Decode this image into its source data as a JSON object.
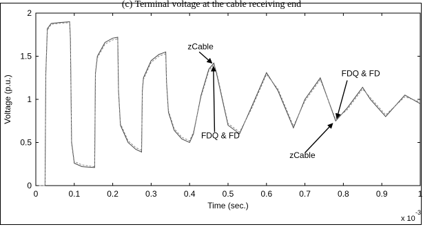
{
  "caption_fragment": "(c) Terminal voltage at the cable receiving end",
  "chart_data": {
    "type": "line",
    "title": "",
    "xlabel": "Time (sec.)",
    "ylabel": "Voltage (p.u.)",
    "x_multiplier": "x 10",
    "x_multiplier_exp": "-3",
    "xlim": [
      0,
      1
    ],
    "ylim": [
      0,
      2
    ],
    "xticks": [
      "0",
      "0.1",
      "0.2",
      "0.3",
      "0.4",
      "0.5",
      "0.6",
      "0.7",
      "0.8",
      "0.9",
      "1"
    ],
    "yticks": [
      "0",
      "0.5",
      "1",
      "1.5",
      "2"
    ],
    "grid": false,
    "legend": "none",
    "series": [
      {
        "style": "solid",
        "x": [
          0,
          0.024,
          0.026,
          0.03,
          0.04,
          0.06,
          0.088,
          0.09,
          0.093,
          0.1,
          0.12,
          0.15,
          0.153,
          0.155,
          0.16,
          0.18,
          0.2,
          0.213,
          0.215,
          0.22,
          0.24,
          0.26,
          0.275,
          0.277,
          0.28,
          0.3,
          0.32,
          0.338,
          0.34,
          0.345,
          0.36,
          0.38,
          0.4,
          0.41,
          0.43,
          0.45,
          0.463,
          0.47,
          0.5,
          0.53,
          0.56,
          0.6,
          0.63,
          0.67,
          0.7,
          0.74,
          0.78,
          0.81,
          0.85,
          0.87,
          0.91,
          0.96,
          1.0
        ],
        "y": [
          0,
          0,
          1.3,
          1.82,
          1.88,
          1.89,
          1.9,
          1.7,
          0.5,
          0.26,
          0.22,
          0.21,
          0.21,
          1.3,
          1.5,
          1.66,
          1.71,
          1.72,
          1.1,
          0.7,
          0.5,
          0.42,
          0.39,
          1.1,
          1.25,
          1.45,
          1.52,
          1.55,
          1.2,
          0.85,
          0.64,
          0.54,
          0.5,
          0.6,
          1.05,
          1.35,
          1.42,
          1.3,
          0.7,
          0.6,
          0.9,
          1.31,
          1.1,
          0.67,
          1.0,
          1.25,
          0.75,
          0.9,
          1.14,
          1.0,
          0.8,
          1.05,
          0.95
        ]
      },
      {
        "style": "dashed",
        "x": [
          0,
          0.024,
          0.026,
          0.03,
          0.04,
          0.06,
          0.088,
          0.09,
          0.093,
          0.1,
          0.12,
          0.15,
          0.153,
          0.155,
          0.16,
          0.18,
          0.2,
          0.213,
          0.215,
          0.22,
          0.24,
          0.26,
          0.275,
          0.277,
          0.28,
          0.3,
          0.32,
          0.338,
          0.34,
          0.345,
          0.36,
          0.38,
          0.4,
          0.41,
          0.43,
          0.45,
          0.463,
          0.47,
          0.5,
          0.53,
          0.56,
          0.6,
          0.63,
          0.67,
          0.7,
          0.74,
          0.78,
          0.81,
          0.85,
          0.87,
          0.91,
          0.96,
          1.0
        ],
        "y": [
          0,
          0,
          1.28,
          1.8,
          1.87,
          1.88,
          1.89,
          1.72,
          0.52,
          0.28,
          0.24,
          0.22,
          0.22,
          1.28,
          1.48,
          1.64,
          1.69,
          1.7,
          1.12,
          0.72,
          0.52,
          0.44,
          0.41,
          1.08,
          1.23,
          1.43,
          1.5,
          1.53,
          1.22,
          0.87,
          0.66,
          0.56,
          0.52,
          0.62,
          1.03,
          1.33,
          1.4,
          1.32,
          0.72,
          0.62,
          0.88,
          1.29,
          1.12,
          0.69,
          0.98,
          1.23,
          0.77,
          0.88,
          1.12,
          1.02,
          0.82,
          1.03,
          0.97
        ]
      }
    ],
    "annotations": [
      {
        "text": "zCable",
        "label_pos": [
          0.395,
          1.58
        ],
        "arrow_from": [
          0.425,
          1.55
        ],
        "arrow_to": [
          0.458,
          1.42
        ]
      },
      {
        "text": "FDQ & FD",
        "label_pos": [
          0.43,
          0.55
        ],
        "arrow_from": [
          0.465,
          0.62
        ],
        "arrow_to": [
          0.462,
          1.38
        ]
      },
      {
        "text": "FDQ & FD",
        "label_pos": [
          0.795,
          1.27
        ],
        "arrow_from": [
          0.81,
          1.22
        ],
        "arrow_to": [
          0.783,
          0.78
        ]
      },
      {
        "text": "zCable",
        "label_pos": [
          0.66,
          0.32
        ],
        "arrow_from": [
          0.7,
          0.38
        ],
        "arrow_to": [
          0.772,
          0.72
        ]
      }
    ]
  }
}
